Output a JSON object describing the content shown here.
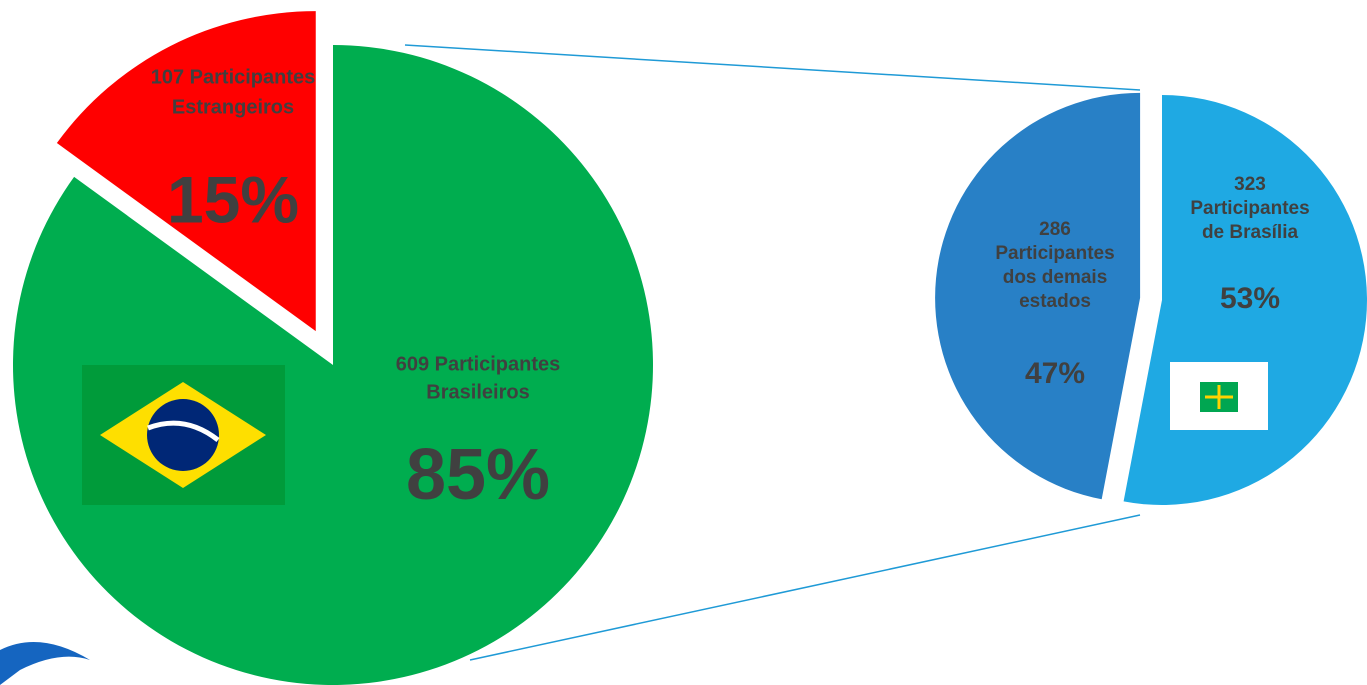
{
  "chart_data": [
    {
      "type": "pie",
      "categories": [
        [
          "609 Participantes",
          "Brasileiros"
        ],
        [
          "107 Participantes",
          "Estrangeiros"
        ]
      ],
      "values": [
        85,
        15
      ],
      "value_labels": [
        "85%",
        "15%"
      ],
      "colors": [
        "#00ad4f",
        "#ff0000"
      ]
    },
    {
      "type": "pie",
      "categories": [
        [
          "323",
          "Participantes",
          "de Brasília"
        ],
        [
          "286",
          "Participantes",
          "dos demais",
          "estados"
        ]
      ],
      "values": [
        53,
        47
      ],
      "value_labels": [
        "53%",
        "47%"
      ],
      "colors": [
        "#1fa9e3",
        "#2880c6"
      ]
    }
  ]
}
